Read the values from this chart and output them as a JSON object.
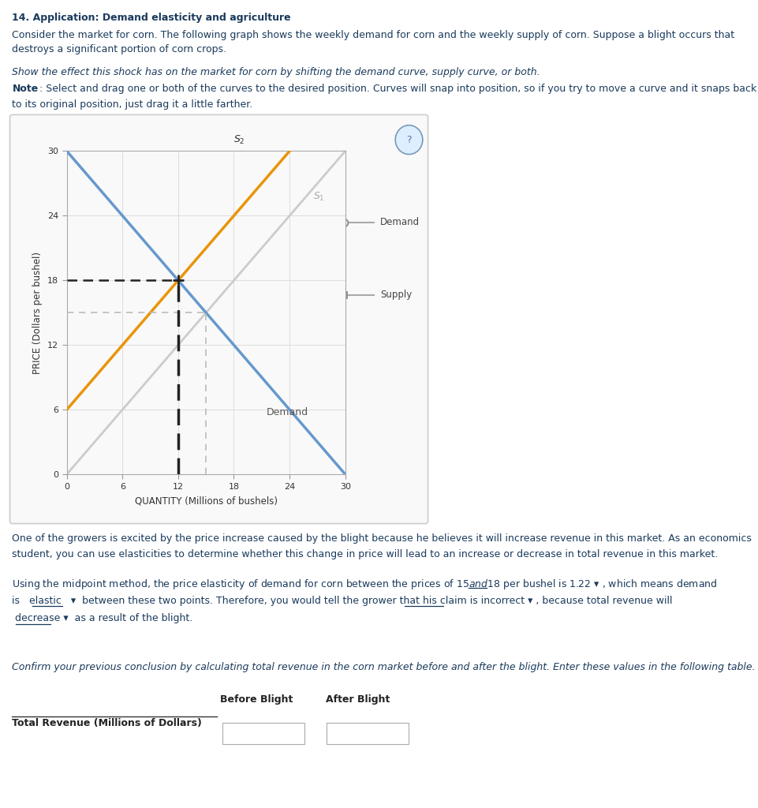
{
  "title": "14. Application: Demand elasticity and agriculture",
  "para1_line1": "Consider the market for corn. The following graph shows the weekly demand for corn and the weekly supply of corn. Suppose a blight occurs that",
  "para1_line2": "destroys a significant portion of corn crops.",
  "para2": "Show the effect this shock has on the market for corn by shifting the demand curve, supply curve, or both.",
  "para3_bold": "Note",
  "para3_rest": ": Select and drag one or both of the curves to the desired position. Curves will snap into position, so if you try to move a curve and it snaps back",
  "para3_line2": "to its original position, just drag it a little farther.",
  "xlabel": "QUANTITY (Millions of bushels)",
  "ylabel": "PRICE (Dollars per bushel)",
  "xlim": [
    0,
    30
  ],
  "ylim": [
    0,
    30
  ],
  "xticks": [
    0,
    6,
    12,
    18,
    24,
    30
  ],
  "yticks": [
    0,
    6,
    12,
    18,
    24,
    30
  ],
  "demand_color": "#6699cc",
  "s1_color": "#cccccc",
  "s2_color": "#e8950a",
  "dashed_black": "#222222",
  "dashed_gray": "#bbbbbb",
  "eq_x": 12,
  "eq_y": 18,
  "gray_eq_x": 15,
  "gray_eq_y": 15,
  "text_color": "#1a3a5c",
  "para4_line1": "One of the growers is excited by the price increase caused by the blight because he believes it will increase revenue in this market. As an economics",
  "para4_line2": "student, you can use elasticities to determine whether this change in price will lead to an increase or decrease in total revenue in this market.",
  "para5_line1a": "Using the midpoint method, the price elasticity of demand for corn between the prices of $15 and $18 per bushel is ",
  "para5_val1": "1.22",
  "para5_line1b": " ▾ , which means demand",
  "para5_line2a": "is   ",
  "para5_val2": "elastic",
  "para5_line2b": "   ▾  between these two points. Therefore, you would tell the grower that his claim is ",
  "para5_val3": "incorrect",
  "para5_line2c": " ▾ , because total revenue will",
  "para5_val4": "decrease",
  "para5_line3b": " ▾  as a result of the blight.",
  "para6": "Confirm your previous conclusion by calculating total revenue in the corn market before and after the blight. Enter these values in the following table.",
  "table_col1": "Before Blight",
  "table_col2": "After Blight",
  "table_rowlabel": "Total Revenue (Millions of Dollars)"
}
